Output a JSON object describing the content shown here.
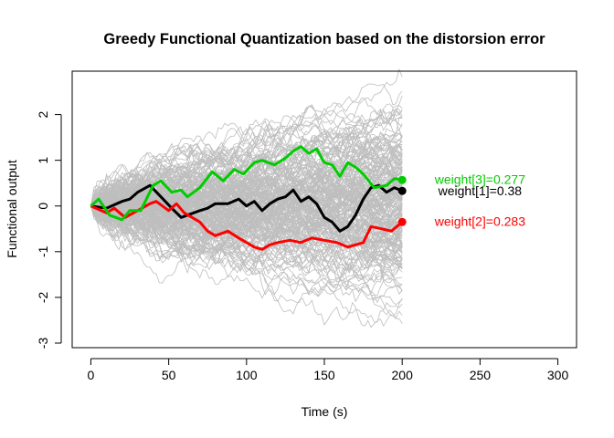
{
  "chart_data": {
    "type": "line",
    "title": "Greedy Functional Quantization based on the distorsion error",
    "xlabel": "Time (s)",
    "ylabel": "Functional output",
    "xlim": [
      -12,
      312
    ],
    "ylim": [
      -3.1,
      2.95
    ],
    "xticks": [
      0,
      50,
      100,
      150,
      200,
      250,
      300
    ],
    "yticks": [
      -3,
      -2,
      -1,
      0,
      1,
      2
    ],
    "background_paths": {
      "color": "#bebebe",
      "count": 200,
      "t_end": 200,
      "style": "thin grey Brownian sample paths starting at 0"
    },
    "series": [
      {
        "color": "#000000",
        "label": "weight[1]=0.38",
        "x": [
          0,
          10,
          20,
          25,
          30,
          38,
          45,
          52,
          58,
          62,
          70,
          75,
          80,
          88,
          95,
          100,
          105,
          110,
          115,
          120,
          125,
          130,
          135,
          140,
          145,
          150,
          155,
          160,
          165,
          170,
          175,
          180,
          185,
          190,
          195,
          200
        ],
        "y": [
          0,
          -0.05,
          0.1,
          0.15,
          0.3,
          0.45,
          0.2,
          -0.05,
          -0.25,
          -0.2,
          -0.1,
          -0.05,
          0.05,
          0.05,
          0.15,
          0.0,
          0.1,
          -0.1,
          0.05,
          0.15,
          0.2,
          0.35,
          0.1,
          0.2,
          0.05,
          -0.25,
          -0.35,
          -0.55,
          -0.45,
          -0.2,
          0.15,
          0.4,
          0.45,
          0.3,
          0.4,
          0.33
        ]
      },
      {
        "color": "#ff0000",
        "label": "weight[2]=0.283",
        "x": [
          0,
          10,
          15,
          22,
          30,
          38,
          42,
          50,
          55,
          60,
          65,
          70,
          75,
          80,
          88,
          95,
          100,
          105,
          110,
          115,
          120,
          128,
          135,
          142,
          150,
          158,
          165,
          170,
          175,
          180,
          187,
          193,
          200
        ],
        "y": [
          0,
          -0.15,
          -0.05,
          -0.25,
          -0.1,
          0.05,
          0.1,
          -0.1,
          0.05,
          -0.15,
          -0.25,
          -0.35,
          -0.55,
          -0.65,
          -0.55,
          -0.7,
          -0.8,
          -0.9,
          -0.95,
          -0.85,
          -0.8,
          -0.75,
          -0.8,
          -0.7,
          -0.75,
          -0.8,
          -0.9,
          -0.85,
          -0.8,
          -0.45,
          -0.5,
          -0.55,
          -0.35
        ]
      },
      {
        "color": "#00cc00",
        "label": "weight[3]=0.277",
        "x": [
          0,
          5,
          12,
          20,
          25,
          32,
          40,
          45,
          52,
          58,
          62,
          70,
          78,
          85,
          92,
          98,
          105,
          110,
          118,
          125,
          130,
          135,
          140,
          145,
          150,
          155,
          160,
          165,
          170,
          175,
          182,
          190,
          195,
          200
        ],
        "y": [
          0,
          0.15,
          -0.2,
          -0.3,
          -0.1,
          -0.1,
          0.45,
          0.55,
          0.3,
          0.35,
          0.2,
          0.4,
          0.75,
          0.55,
          0.8,
          0.7,
          0.95,
          1.0,
          0.9,
          1.05,
          1.2,
          1.3,
          1.15,
          1.25,
          0.95,
          0.9,
          0.65,
          0.95,
          0.85,
          0.7,
          0.4,
          0.45,
          0.6,
          0.57
        ]
      }
    ],
    "text_labels": [
      {
        "text": "weight[3]=0.277",
        "color": "#00cc00",
        "x": 250,
        "y": 0.58
      },
      {
        "text": "weight[1]=0.38",
        "color": "#000000",
        "x": 250,
        "y": 0.33
      },
      {
        "text": "weight[2]=0.283",
        "color": "#ff0000",
        "x": 250,
        "y": -0.33
      }
    ],
    "grid": false,
    "legend": "none"
  }
}
